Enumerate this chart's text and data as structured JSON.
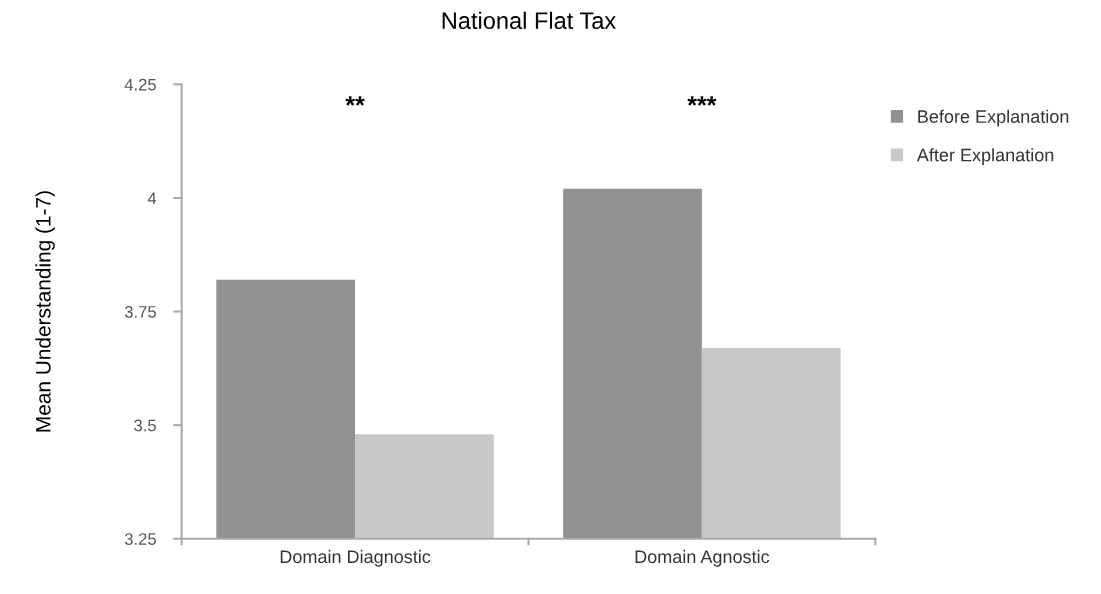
{
  "chart_data": {
    "type": "bar",
    "title": "National Flat Tax",
    "ylabel": "Mean Understanding (1-7)",
    "categories": [
      "Domain Diagnostic",
      "Domain Agnostic"
    ],
    "series": [
      {
        "name": "Before Explanation",
        "color": "#919191",
        "values": [
          3.82,
          4.02
        ]
      },
      {
        "name": "After Explanation",
        "color": "#c8c8c8",
        "values": [
          3.48,
          3.67
        ]
      }
    ],
    "ylim": [
      3.25,
      4.25
    ],
    "yticks": [
      3.25,
      3.5,
      3.75,
      4,
      4.25
    ],
    "grid": false,
    "legend": "right",
    "annotations": [
      "**",
      "***"
    ]
  }
}
